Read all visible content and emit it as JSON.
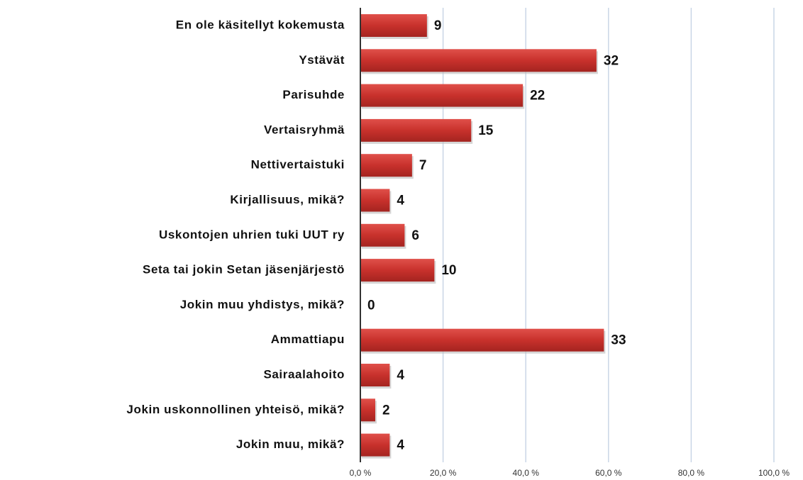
{
  "chart_data": {
    "type": "bar",
    "orientation": "horizontal",
    "categories": [
      "En ole käsitellyt kokemusta",
      "Ystävät",
      "Parisuhde",
      "Vertaisryhmä",
      "Nettivertaistuki",
      "Kirjallisuus, mikä?",
      "Uskontojen uhrien tuki UUT ry",
      "Seta tai jokin Setan jäsenjärjestö",
      "Jokin muu yhdistys, mikä?",
      "Ammattiapu",
      "Sairaalahoito",
      "Jokin uskonnollinen yhteisö, mikä?",
      "Jokin muu, mikä?"
    ],
    "values": [
      16.1,
      57.1,
      39.3,
      26.8,
      12.5,
      7.1,
      10.7,
      17.9,
      0,
      58.9,
      7.1,
      3.6,
      7.1
    ],
    "counts": [
      9,
      32,
      22,
      15,
      7,
      4,
      6,
      10,
      0,
      33,
      4,
      2,
      4
    ],
    "color": "#c8312c",
    "xlim": [
      0,
      100
    ],
    "xticks": [
      {
        "value": 0,
        "label": "0,0 %"
      },
      {
        "value": 20,
        "label": "20,0 %"
      },
      {
        "value": 40,
        "label": "40,0 %"
      },
      {
        "value": 60,
        "label": "60,0 %"
      },
      {
        "value": 80,
        "label": "80,0 %"
      },
      {
        "value": 100,
        "label": "100,0 %"
      }
    ],
    "grid": true
  }
}
